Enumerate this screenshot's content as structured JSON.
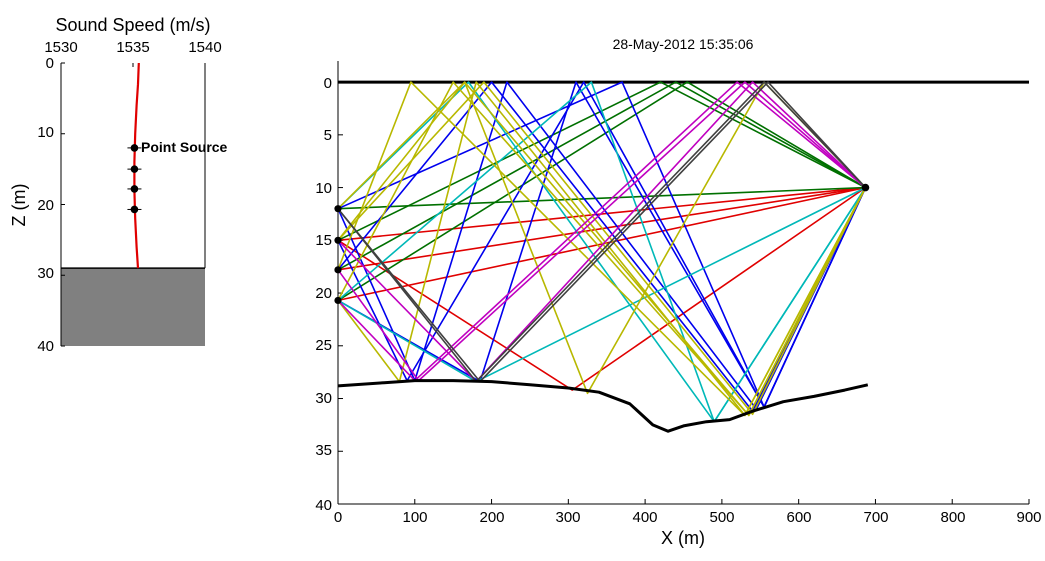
{
  "chart_data": [
    {
      "type": "line",
      "title": "Sound Speed (m/s)",
      "xlabel": "",
      "ylabel": "Z (m)",
      "xlim": [
        1530,
        1540
      ],
      "ylim": [
        0,
        40
      ],
      "y_reversed": true,
      "x_axis_location": "top",
      "xticks": [
        1530,
        1535,
        1540
      ],
      "yticks": [
        0,
        10,
        20,
        30,
        40
      ],
      "profile": {
        "color": "#e00000",
        "points": [
          [
            1535.4,
            0
          ],
          [
            1535.35,
            3
          ],
          [
            1535.25,
            6
          ],
          [
            1535.15,
            10
          ],
          [
            1535.1,
            14
          ],
          [
            1535.1,
            18
          ],
          [
            1535.15,
            22
          ],
          [
            1535.25,
            26
          ],
          [
            1535.35,
            29
          ]
        ]
      },
      "bottom_depth": 29,
      "bottom_fill_color": "#808080",
      "receivers": {
        "x": 1535.1,
        "depths": [
          12,
          15,
          17.8,
          20.7
        ]
      },
      "annotation": "Point Source"
    },
    {
      "type": "line",
      "title": "28-May-2012 15:35:06",
      "xlabel": "X (m)",
      "ylabel": "",
      "xlim": [
        0,
        900
      ],
      "ylim": [
        0,
        40
      ],
      "y_reversed": true,
      "xticks": [
        0,
        100,
        200,
        300,
        400,
        500,
        600,
        700,
        800,
        900
      ],
      "yticks": [
        0,
        5,
        10,
        15,
        20,
        25,
        30,
        35,
        40
      ],
      "surface": {
        "depth": 0,
        "x": [
          0,
          900
        ]
      },
      "bathymetry": [
        [
          0,
          28.8
        ],
        [
          60,
          28.5
        ],
        [
          100,
          28.3
        ],
        [
          150,
          28.3
        ],
        [
          200,
          28.4
        ],
        [
          250,
          28.7
        ],
        [
          300,
          29
        ],
        [
          340,
          29.4
        ],
        [
          380,
          30.5
        ],
        [
          410,
          32.5
        ],
        [
          430,
          33.1
        ],
        [
          450,
          32.6
        ],
        [
          480,
          32.2
        ],
        [
          510,
          32
        ],
        [
          540,
          31.2
        ],
        [
          580,
          30.3
        ],
        [
          620,
          29.8
        ],
        [
          660,
          29.2
        ],
        [
          690,
          28.7
        ]
      ],
      "source": {
        "x": 687,
        "z": 10
      },
      "receivers": [
        {
          "x": 0,
          "z": 12
        },
        {
          "x": 0,
          "z": 15
        },
        {
          "x": 0,
          "z": 17.8
        },
        {
          "x": 0,
          "z": 20.7
        }
      ],
      "rays": [
        {
          "color": "#e00000",
          "points": [
            [
              687,
              10
            ],
            [
              0,
              15
            ]
          ]
        },
        {
          "color": "#e00000",
          "points": [
            [
              687,
              10
            ],
            [
              0,
              17.8
            ]
          ]
        },
        {
          "color": "#e00000",
          "points": [
            [
              687,
              10
            ],
            [
              0,
              20.7
            ]
          ]
        },
        {
          "color": "#e00000",
          "points": [
            [
              687,
              10
            ],
            [
              305,
              29.2
            ],
            [
              0,
              15
            ]
          ]
        },
        {
          "color": "#007000",
          "points": [
            [
              687,
              10
            ],
            [
              0,
              12
            ]
          ]
        },
        {
          "color": "#007000",
          "points": [
            [
              687,
              10
            ],
            [
              455,
              0
            ],
            [
              0,
              20.7
            ]
          ]
        },
        {
          "color": "#007000",
          "points": [
            [
              687,
              10
            ],
            [
              440,
              0
            ],
            [
              0,
              17.8
            ]
          ]
        },
        {
          "color": "#007000",
          "points": [
            [
              687,
              10
            ],
            [
              420,
              0
            ],
            [
              0,
              15
            ]
          ]
        },
        {
          "color": "#0000ee",
          "points": [
            [
              687,
              10
            ],
            [
              555,
              30.8
            ],
            [
              370,
              0
            ],
            [
              0,
              12
            ]
          ]
        },
        {
          "color": "#0000ee",
          "points": [
            [
              687,
              10
            ],
            [
              545,
              31
            ],
            [
              220,
              0
            ],
            [
              100,
              28.3
            ],
            [
              0,
              12
            ]
          ]
        },
        {
          "color": "#0000ee",
          "points": [
            [
              687,
              10
            ],
            [
              540,
              31.2
            ],
            [
              200,
              0
            ],
            [
              0,
              17.8
            ]
          ]
        },
        {
          "color": "#0000ee",
          "points": [
            [
              687,
              10
            ],
            [
              555,
              30.8
            ],
            [
              310,
              0
            ],
            [
              185,
              28.4
            ],
            [
              0,
              20.7
            ]
          ]
        },
        {
          "color": "#0000ee",
          "points": [
            [
              687,
              10
            ],
            [
              555,
              30.8
            ],
            [
              320,
              0
            ],
            [
              90,
              28.3
            ],
            [
              0,
              15
            ]
          ]
        },
        {
          "color": "#00b8b8",
          "points": [
            [
              687,
              10
            ],
            [
              490,
              32.2
            ],
            [
              170,
              0
            ],
            [
              0,
              12
            ]
          ]
        },
        {
          "color": "#00b8b8",
          "points": [
            [
              687,
              10
            ],
            [
              490,
              32.2
            ],
            [
              330,
              0
            ],
            [
              0,
              20.7
            ]
          ]
        },
        {
          "color": "#00b8b8",
          "points": [
            [
              687,
              10
            ],
            [
              180,
              28.4
            ],
            [
              0,
              20.7
            ]
          ]
        },
        {
          "color": "#b8b800",
          "points": [
            [
              687,
              10
            ],
            [
              535,
              31.6
            ],
            [
              165,
              0
            ],
            [
              0,
              15
            ]
          ]
        },
        {
          "color": "#b8b800",
          "points": [
            [
              687,
              10
            ],
            [
              530,
              31.6
            ],
            [
              95,
              0
            ],
            [
              0,
              17.8
            ]
          ]
        },
        {
          "color": "#b8b800",
          "points": [
            [
              687,
              10
            ],
            [
              555,
              0
            ],
            [
              325,
              29.5
            ],
            [
              165,
              0
            ],
            [
              0,
              12
            ]
          ]
        },
        {
          "color": "#b8b800",
          "points": [
            [
              687,
              10
            ],
            [
              530,
              31.6
            ],
            [
              180,
              0
            ],
            [
              80,
              28.4
            ],
            [
              0,
              20.7
            ]
          ]
        },
        {
          "color": "#b8b800",
          "points": [
            [
              687,
              10
            ],
            [
              535,
              31.6
            ],
            [
              150,
              0
            ],
            [
              0,
              20.7
            ]
          ]
        },
        {
          "color": "#b8b800",
          "points": [
            [
              687,
              10
            ],
            [
              540,
              31.5
            ],
            [
              190,
              0
            ],
            [
              0,
              15
            ]
          ]
        },
        {
          "color": "#c000c0",
          "points": [
            [
              687,
              10
            ],
            [
              540,
              0
            ],
            [
              180,
              28.4
            ],
            [
              0,
              15
            ]
          ]
        },
        {
          "color": "#c000c0",
          "points": [
            [
              687,
              10
            ],
            [
              530,
              0
            ],
            [
              105,
              28.3
            ],
            [
              0,
              17.8
            ]
          ]
        },
        {
          "color": "#c000c0",
          "points": [
            [
              687,
              10
            ],
            [
              520,
              0
            ],
            [
              100,
              28.3
            ],
            [
              0,
              20.7
            ]
          ]
        },
        {
          "color": "#404040",
          "points": [
            [
              687,
              10
            ],
            [
              555,
              0
            ],
            [
              180,
              28.4
            ],
            [
              0,
              12
            ]
          ]
        },
        {
          "color": "#404040",
          "points": [
            [
              687,
              10
            ],
            [
              560,
              0
            ],
            [
              185,
              28.4
            ],
            [
              0,
              12
            ]
          ]
        }
      ]
    }
  ]
}
